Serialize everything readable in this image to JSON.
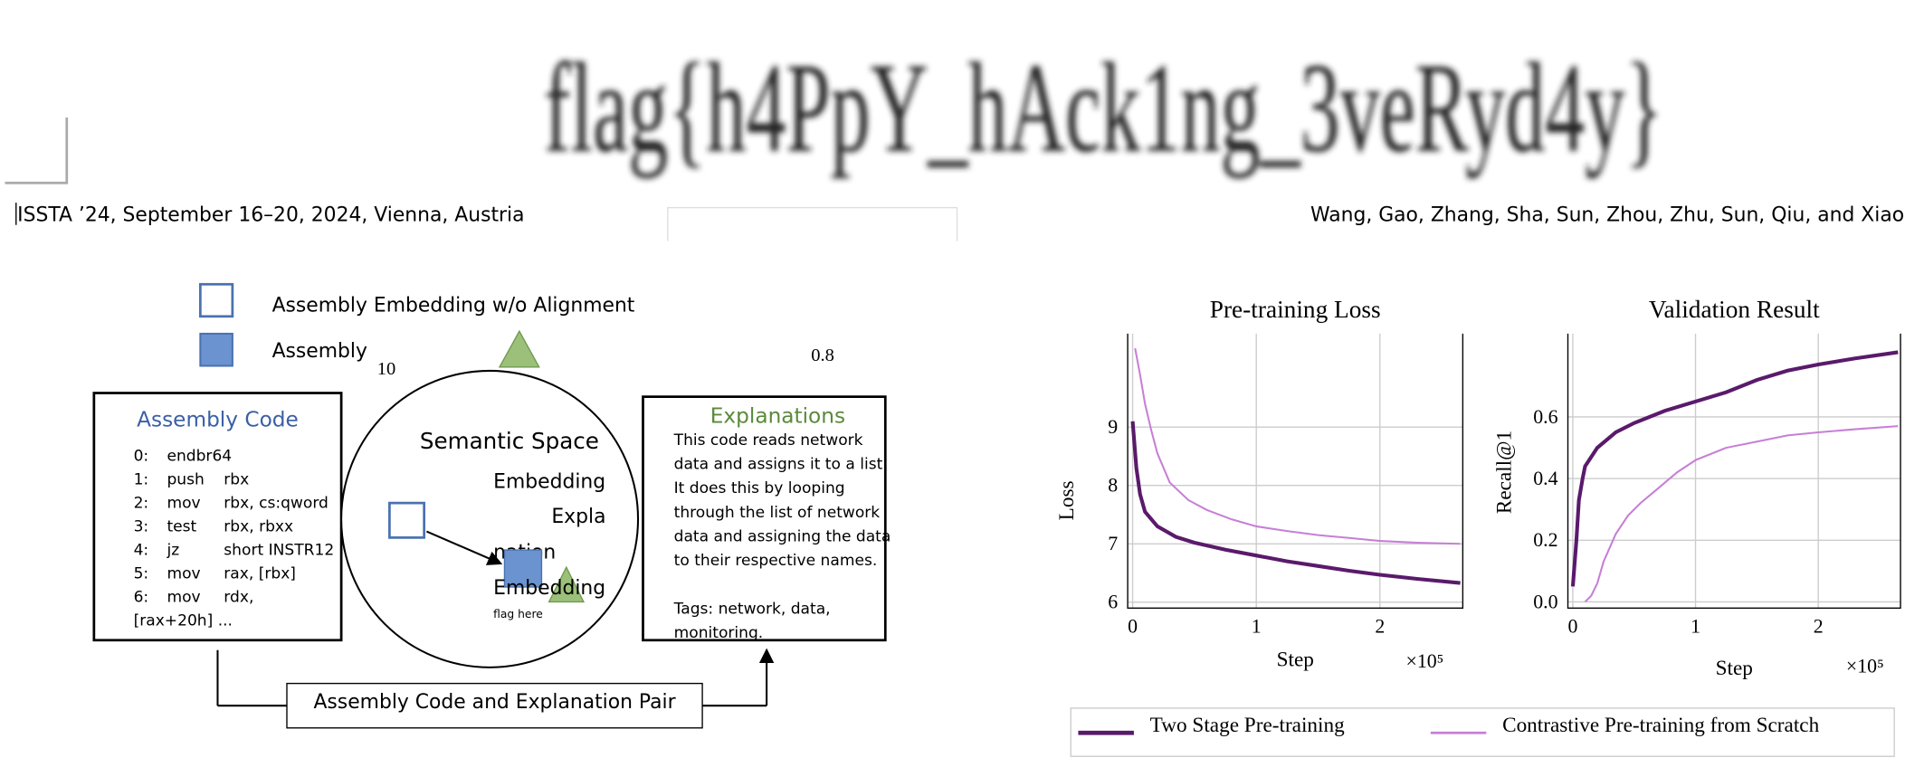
{
  "header": {
    "flag": "flag{h4PpY_hAck1ng_3veRyd4y}",
    "venue": "ISSTA ’24, September 16–20, 2024, Vienna, Austria",
    "authors": "Wang, Gao, Zhang, Sha, Sun, Zhou, Zhu, Sun, Qiu, and Xiao"
  },
  "diagram": {
    "legend": [
      "Assembly Embedding w/o Alignment",
      "Assembly"
    ],
    "stray_labels": [
      "10",
      "0.8"
    ],
    "code_box": {
      "title": "Assembly Code",
      "rows": [
        [
          "0:",
          "endbr64",
          null
        ],
        [
          "1:",
          "push",
          "rbx"
        ],
        [
          "2:",
          "mov",
          "rbx, cs:qword"
        ],
        [
          "3:",
          "test",
          "rbx, rbxx"
        ],
        [
          "4:",
          "jz",
          "short INSTR12"
        ],
        [
          "5:",
          "mov",
          "rax, [rbx]"
        ],
        [
          "6:",
          "mov",
          "rdx,"
        ]
      ],
      "tail": "[rax+20h] ..."
    },
    "space": {
      "title": "Semantic Space",
      "labels": [
        "Embedding",
        "Expla",
        "nation",
        "Embedding"
      ],
      "note": "flag here"
    },
    "explain_box": {
      "title": "Explanations",
      "lines": [
        "This code reads network",
        "data and assigns it to a list.",
        "It does this by looping",
        "through the list of network",
        "data and assigning the data",
        "to their respective names.",
        "Tags: network, data,",
        "monitoring."
      ]
    },
    "pair": "Assembly Code and Explanation Pair"
  },
  "chart_data": [
    {
      "type": "line",
      "title": "Pre-training Loss",
      "x_label": "Step",
      "y_label": "Loss",
      "x_multiplier": "×10⁵",
      "xlim": [
        -0.04,
        2.67
      ],
      "ylim": [
        5.9,
        10.6
      ],
      "xticks": [
        0,
        1,
        2
      ],
      "yticks": [
        6,
        7,
        8,
        9
      ],
      "grid": true,
      "series": [
        {
          "name": "Two Stage Pre-training",
          "color": "#5a1a6b",
          "x": [
            0,
            0.03,
            0.06,
            0.1,
            0.2,
            0.35,
            0.5,
            0.75,
            1.0,
            1.25,
            1.5,
            1.75,
            2.0,
            2.3,
            2.65
          ],
          "values": [
            9.1,
            8.3,
            7.85,
            7.55,
            7.3,
            7.12,
            7.02,
            6.9,
            6.8,
            6.7,
            6.62,
            6.54,
            6.47,
            6.4,
            6.33
          ]
        },
        {
          "name": "Contrastive Pre-training from Scratch",
          "color": "#c77fd6",
          "x": [
            0.02,
            0.06,
            0.1,
            0.15,
            0.2,
            0.3,
            0.45,
            0.6,
            0.8,
            1.0,
            1.25,
            1.5,
            1.75,
            2.0,
            2.3,
            2.65
          ],
          "values": [
            10.35,
            9.9,
            9.4,
            8.95,
            8.55,
            8.05,
            7.75,
            7.58,
            7.42,
            7.3,
            7.22,
            7.15,
            7.1,
            7.05,
            7.02,
            7.0
          ]
        }
      ]
    },
    {
      "type": "line",
      "title": "Validation Result",
      "x_label": "Step",
      "y_label": "Recall@1",
      "x_multiplier": "×10⁵",
      "xlim": [
        -0.04,
        2.67
      ],
      "ylim": [
        -0.02,
        0.87
      ],
      "xticks": [
        0,
        1,
        2
      ],
      "yticks": [
        {
          "value": 0,
          "label": "0.0"
        },
        0.2,
        0.4,
        0.6
      ],
      "grid": true,
      "series": [
        {
          "name": "Two Stage Pre-training",
          "color": "#5a1a6b",
          "x": [
            0,
            0.03,
            0.05,
            0.08,
            0.1,
            0.2,
            0.35,
            0.5,
            0.75,
            1.0,
            1.25,
            1.5,
            1.75,
            2.0,
            2.3,
            2.65
          ],
          "values": [
            0.05,
            0.2,
            0.33,
            0.4,
            0.44,
            0.5,
            0.55,
            0.58,
            0.62,
            0.65,
            0.68,
            0.72,
            0.75,
            0.77,
            0.79,
            0.81
          ]
        },
        {
          "name": "Contrastive Pre-training from Scratch",
          "color": "#c77fd6",
          "x": [
            0.1,
            0.15,
            0.2,
            0.25,
            0.35,
            0.45,
            0.55,
            0.7,
            0.85,
            1.0,
            1.25,
            1.5,
            1.75,
            2.0,
            2.3,
            2.65
          ],
          "values": [
            0.0,
            0.02,
            0.06,
            0.13,
            0.22,
            0.28,
            0.32,
            0.37,
            0.42,
            0.46,
            0.5,
            0.52,
            0.54,
            0.55,
            0.56,
            0.57
          ]
        }
      ]
    }
  ]
}
